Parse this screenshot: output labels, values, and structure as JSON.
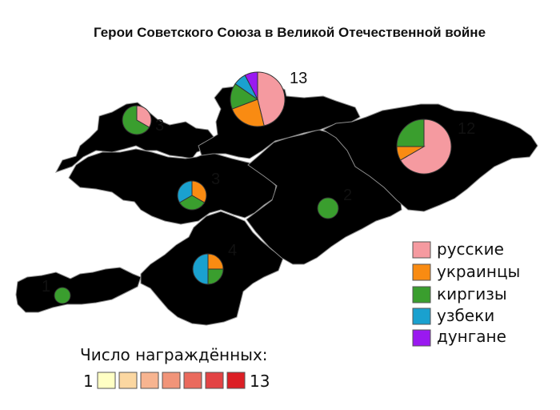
{
  "title": "Герои Советского Союза в Великой Отечественной войне",
  "colors": {
    "russians": "#f59aa0",
    "ukrainians": "#f98b12",
    "kyrgyz": "#3a9e2e",
    "uzbeks": "#1aa1cf",
    "dungans": "#9a19f0",
    "scale": [
      "#ffffc4",
      "#fbd7a1",
      "#f7b490",
      "#f19479",
      "#ea6a5d",
      "#e34344",
      "#dc1f25"
    ]
  },
  "categories": [
    {
      "key": "russians",
      "label": "русские"
    },
    {
      "key": "ukrainians",
      "label": "украинцы"
    },
    {
      "key": "kyrgyz",
      "label": "киргизы"
    },
    {
      "key": "uzbeks",
      "label": "узбеки"
    },
    {
      "key": "dungans",
      "label": "дунгане"
    }
  ],
  "regions": [
    {
      "id": "chuy",
      "total": 13,
      "total_label": "13",
      "breakdown": {
        "russians": 6,
        "ukrainians": 3,
        "kyrgyz": 2,
        "uzbeks": 1,
        "dungans": 1
      }
    },
    {
      "id": "issyk-kul",
      "total": 12,
      "total_label": "12",
      "breakdown": {
        "russians": 8,
        "ukrainians": 1,
        "kyrgyz": 3
      }
    },
    {
      "id": "talas",
      "total": 3,
      "total_label": "3",
      "breakdown": {
        "russians": 1,
        "kyrgyz": 2
      }
    },
    {
      "id": "jalal-abad",
      "total": 3,
      "total_label": "3",
      "breakdown": {
        "ukrainians": 1,
        "kyrgyz": 1,
        "uzbeks": 1
      }
    },
    {
      "id": "naryn",
      "total": 2,
      "total_label": "2",
      "breakdown": {
        "kyrgyz": 2
      }
    },
    {
      "id": "osh",
      "total": 4,
      "total_label": "4",
      "breakdown": {
        "ukrainians": 1,
        "kyrgyz": 1,
        "uzbeks": 2
      }
    },
    {
      "id": "batken",
      "total": 1,
      "total_label": "1",
      "breakdown": {
        "kyrgyz": 1
      }
    }
  ],
  "scale_legend": {
    "title": "Число награждённых:",
    "min_label": "1",
    "max_label": "13"
  }
}
